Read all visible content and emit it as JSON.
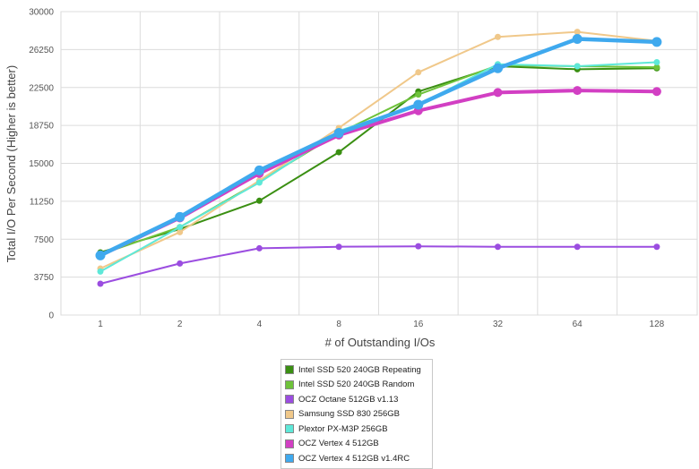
{
  "chart_data": {
    "type": "line",
    "xlabel": "# of Outstanding I/Os",
    "ylabel": "Total I/O Per Second (Higher is better)",
    "categories": [
      "1",
      "2",
      "4",
      "8",
      "16",
      "32",
      "64",
      "128"
    ],
    "y_ticks": [
      "0",
      "3750",
      "7500",
      "11250",
      "15000",
      "18750",
      "22500",
      "26250",
      "30000"
    ],
    "ylim": [
      0,
      30000
    ],
    "grid": true,
    "legend_position": "bottom",
    "series": [
      {
        "name": "Intel SSD 520 240GB Repeating",
        "color": "#3a8f12",
        "values": [
          6200,
          8500,
          11300,
          16100,
          22100,
          24600,
          24300,
          24400
        ]
      },
      {
        "name": "Intel SSD 520 240GB Random",
        "color": "#6ec23a",
        "values": [
          6000,
          8700,
          13200,
          18000,
          21800,
          24700,
          24600,
          24500
        ]
      },
      {
        "name": "OCZ Octane 512GB v1.13",
        "color": "#9b4de0",
        "values": [
          3100,
          5100,
          6600,
          6750,
          6800,
          6750,
          6750,
          6750
        ]
      },
      {
        "name": "Samsung SSD 830 256GB",
        "color": "#f0c88a",
        "values": [
          4600,
          8200,
          13300,
          18500,
          24000,
          27500,
          28000,
          27100
        ]
      },
      {
        "name": "Plextor PX-M3P 256GB",
        "color": "#5ee8d8",
        "values": [
          4300,
          8700,
          13100,
          18200,
          20800,
          24800,
          24600,
          25000
        ]
      },
      {
        "name": "OCZ Vertex 4 512GB",
        "color": "#d23fc3",
        "values": [
          5900,
          9600,
          14000,
          17800,
          20200,
          22000,
          22200,
          22100
        ]
      },
      {
        "name": "OCZ Vertex 4 512GB v1.4RC",
        "color": "#3fa9ee",
        "values": [
          5900,
          9700,
          14300,
          18000,
          20800,
          24400,
          27300,
          27000
        ]
      }
    ]
  }
}
